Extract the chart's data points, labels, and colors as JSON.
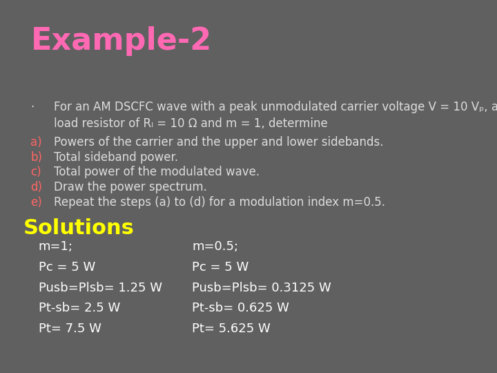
{
  "title": "Example-2",
  "title_color": "#ff69b4",
  "background_color": "#606060",
  "bullet_text": "For an AM DSCFC wave with a peak unmodulated carrier voltage V⁣ = 10 Vₚ, a load resistor of Rₗ = 10 Ω and m = 1, determine",
  "items": [
    {
      "label": "a)",
      "text": "Powers of the carrier and the upper and lower sidebands."
    },
    {
      "label": "b)",
      "text": "Total sideband power."
    },
    {
      "label": "c)",
      "text": "Total power of the modulated wave."
    },
    {
      "label": "d)",
      "text": "Draw the power spectrum."
    },
    {
      "label": "e)",
      "text": "Repeat the steps (a) to (d) for a modulation index m=0.5."
    }
  ],
  "label_color": "#ff6666",
  "item_text_color": "#dddddd",
  "bullet_color": "#dddddd",
  "solutions_title": "Solutions",
  "solutions_title_color": "#ffff00",
  "solutions_left": [
    "m=1;",
    "Pc = 5 W",
    "Pusb=Plsb= 1.25 W",
    "Pt-sb= 2.5 W",
    "Pt= 7.5 W"
  ],
  "solutions_right": [
    "m=0.5;",
    "Pc = 5 W",
    "Pusb=Plsb= 0.3125 W",
    "Pt-sb= 0.625 W",
    "Pt= 5.625 W"
  ],
  "solutions_text_color": "#ffffff",
  "font_size_title": 32,
  "font_size_body": 12,
  "font_size_solutions_title": 22,
  "font_size_solutions_body": 13
}
